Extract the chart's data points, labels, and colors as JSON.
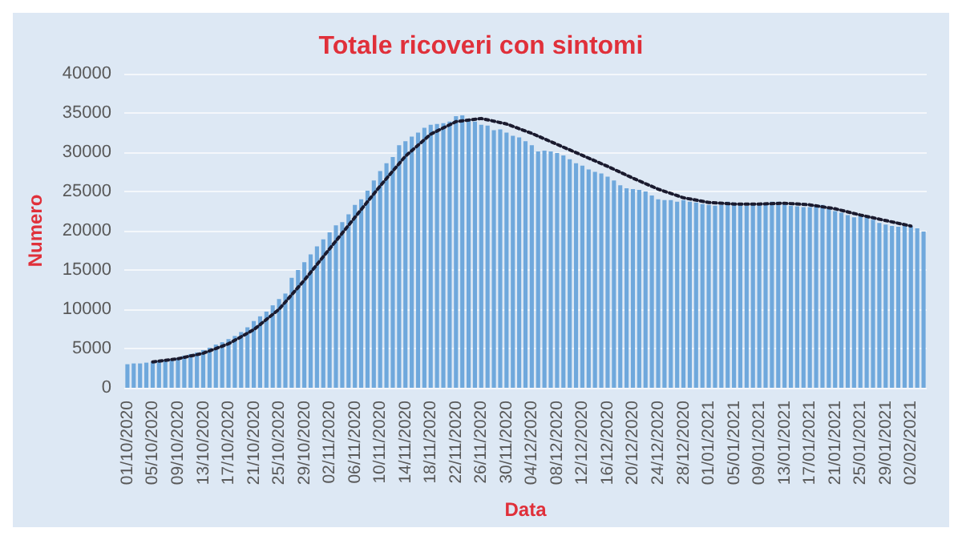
{
  "chart_data": {
    "type": "bar",
    "title": "Totale ricoveri con sintomi",
    "xlabel": "Data",
    "ylabel": "Numero",
    "categories": [
      "01/10/2020",
      null,
      null,
      null,
      "05/10/2020",
      null,
      null,
      null,
      "09/10/2020",
      null,
      null,
      null,
      "13/10/2020",
      null,
      null,
      null,
      "17/10/2020",
      null,
      null,
      null,
      "21/10/2020",
      null,
      null,
      null,
      "25/10/2020",
      null,
      null,
      null,
      "29/10/2020",
      null,
      null,
      null,
      "02/11/2020",
      null,
      null,
      null,
      "06/11/2020",
      null,
      null,
      null,
      "10/11/2020",
      null,
      null,
      null,
      "14/11/2020",
      null,
      null,
      null,
      "18/11/2020",
      null,
      null,
      null,
      "22/11/2020",
      null,
      null,
      null,
      "26/11/2020",
      null,
      null,
      null,
      "30/11/2020",
      null,
      null,
      null,
      "04/12/2020",
      null,
      null,
      null,
      "08/12/2020",
      null,
      null,
      null,
      "12/12/2020",
      null,
      null,
      null,
      "16/12/2020",
      null,
      null,
      null,
      "20/12/2020",
      null,
      null,
      null,
      "24/12/2020",
      null,
      null,
      null,
      "28/12/2020",
      null,
      null,
      null,
      "01/01/2021",
      null,
      null,
      null,
      "05/01/2021",
      null,
      null,
      null,
      "09/01/2021",
      null,
      null,
      null,
      "13/01/2021",
      null,
      null,
      null,
      "17/01/2021",
      null,
      null,
      null,
      "21/01/2021",
      null,
      null,
      null,
      "25/01/2021",
      null,
      null,
      null,
      "29/01/2021",
      null,
      null,
      null,
      "02/02/2021",
      null,
      null
    ],
    "series": [
      {
        "color": "#6fa8dc",
        "values": [
          3000,
          3100,
          3100,
          3200,
          3300,
          3400,
          3500,
          3600,
          3800,
          4100,
          4300,
          4500,
          4800,
          5100,
          5500,
          5800,
          6200,
          6600,
          7100,
          7700,
          8500,
          9100,
          9700,
          10500,
          11300,
          12000,
          14000,
          15000,
          16000,
          17000,
          18000,
          18900,
          19800,
          20700,
          21100,
          22100,
          23300,
          24000,
          25100,
          26400,
          27600,
          28600,
          29400,
          30900,
          31400,
          32000,
          32500,
          33100,
          33500,
          33600,
          33700,
          33900,
          34600,
          34700,
          34100,
          33900,
          33500,
          33400,
          32800,
          32900,
          32500,
          32100,
          31900,
          31400,
          30900,
          30100,
          30200,
          30100,
          29900,
          29600,
          29100,
          28600,
          28300,
          27800,
          27500,
          27300,
          26900,
          26400,
          25800,
          25400,
          25300,
          25200,
          25000,
          24500,
          24000,
          23900,
          23900,
          23700,
          23900,
          23700,
          23600,
          23400,
          23300,
          23200,
          23300,
          23700,
          23600,
          23400,
          23200,
          23300,
          23400,
          23500,
          23700,
          23700,
          23400,
          23200,
          23100,
          23000,
          23000,
          23300,
          23300,
          22900,
          22500,
          22300,
          22000,
          21700,
          21900,
          21700,
          21400,
          21000,
          20800,
          20600,
          20500,
          20600,
          20600,
          20300,
          19900
        ]
      },
      {
        "type": "line",
        "color": "#1a1a2e",
        "line_style": "dotted",
        "marker": "none",
        "values": [
          null,
          null,
          null,
          null,
          3300,
          null,
          null,
          null,
          3700,
          null,
          null,
          null,
          4400,
          null,
          null,
          null,
          5600,
          null,
          null,
          null,
          7400,
          null,
          null,
          null,
          10000,
          null,
          null,
          null,
          13700,
          null,
          null,
          null,
          17700,
          null,
          null,
          null,
          21700,
          null,
          null,
          null,
          25700,
          null,
          null,
          null,
          29500,
          null,
          null,
          null,
          32300,
          null,
          null,
          null,
          33900,
          null,
          null,
          null,
          34300,
          null,
          null,
          null,
          33600,
          null,
          null,
          null,
          32400,
          null,
          null,
          null,
          31000,
          null,
          null,
          null,
          29600,
          null,
          null,
          null,
          28200,
          null,
          null,
          null,
          26700,
          null,
          null,
          null,
          25300,
          null,
          null,
          null,
          24200,
          null,
          null,
          null,
          23600,
          null,
          null,
          null,
          23400,
          null,
          null,
          null,
          23400,
          null,
          null,
          null,
          23500,
          null,
          null,
          null,
          23300,
          null,
          null,
          null,
          22800,
          null,
          null,
          null,
          22000,
          null,
          null,
          null,
          21300,
          null,
          null,
          null,
          20600,
          null,
          null
        ]
      }
    ],
    "ylim": [
      0,
      40000
    ],
    "yticks": [
      0,
      5000,
      10000,
      15000,
      20000,
      25000,
      30000,
      35000,
      40000
    ],
    "grid": "y"
  }
}
